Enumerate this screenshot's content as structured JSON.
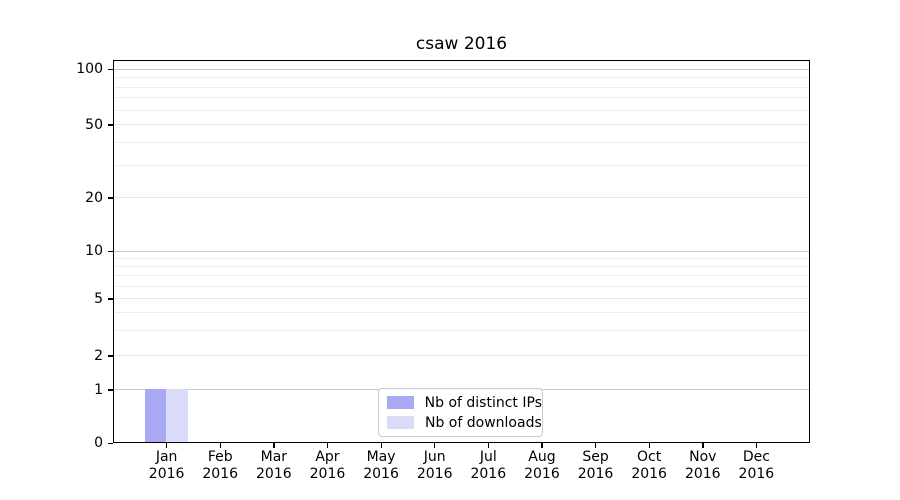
{
  "chart_data": {
    "type": "bar",
    "title": "csaw 2016",
    "x_categories": [
      {
        "month": "Jan",
        "year": "2016"
      },
      {
        "month": "Feb",
        "year": "2016"
      },
      {
        "month": "Mar",
        "year": "2016"
      },
      {
        "month": "Apr",
        "year": "2016"
      },
      {
        "month": "May",
        "year": "2016"
      },
      {
        "month": "Jun",
        "year": "2016"
      },
      {
        "month": "Jul",
        "year": "2016"
      },
      {
        "month": "Aug",
        "year": "2016"
      },
      {
        "month": "Sep",
        "year": "2016"
      },
      {
        "month": "Oct",
        "year": "2016"
      },
      {
        "month": "Nov",
        "year": "2016"
      },
      {
        "month": "Dec",
        "year": "2016"
      }
    ],
    "series": [
      {
        "name": "Nb of distinct IPs",
        "color": "#a8a8f5",
        "values": [
          1,
          0,
          0,
          0,
          0,
          0,
          0,
          0,
          0,
          0,
          0,
          0
        ]
      },
      {
        "name": "Nb of downloads",
        "color": "#dadaf9",
        "values": [
          1,
          0,
          0,
          0,
          0,
          0,
          0,
          0,
          0,
          0,
          0,
          0
        ]
      }
    ],
    "y_axis": {
      "scale": "symlog",
      "major_ticks": [
        0,
        1,
        2,
        5,
        10,
        20,
        50,
        100
      ],
      "minor_gridline_values": [
        3,
        4,
        6,
        7,
        8,
        9,
        30,
        40,
        60,
        70,
        80,
        90
      ],
      "ylim": [
        0,
        120
      ]
    },
    "legend": {
      "position": "bottom-center",
      "entries": [
        "Nb of distinct IPs",
        "Nb of downloads"
      ]
    },
    "grid": true,
    "colors": {
      "major_gridline": "#c9c9c9",
      "mid_gridline": "#e6e6e6",
      "minor_gridline": "#ededed",
      "axis": "#000000",
      "background": "#ffffff"
    }
  }
}
